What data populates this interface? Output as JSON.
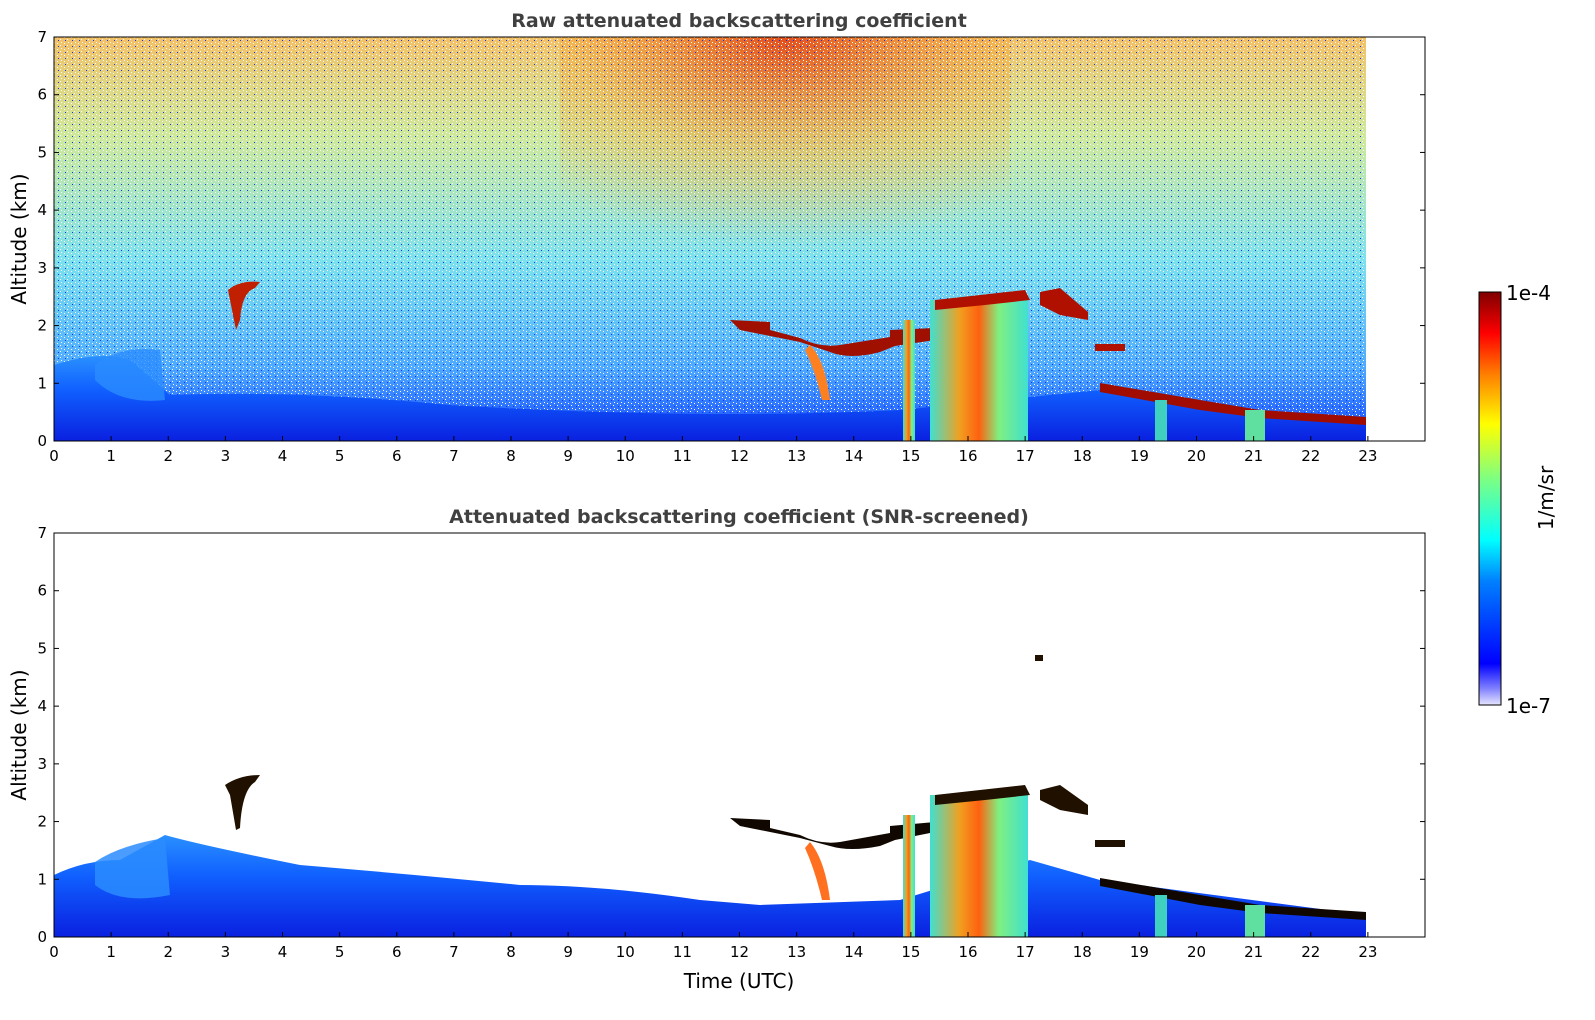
{
  "chart_data": [
    {
      "type": "heatmap",
      "title": "Raw attenuated backscattering coefficient",
      "xlabel": "",
      "ylabel": "Altitude (km)",
      "xlim": [
        0,
        24
      ],
      "ylim": [
        0,
        7
      ],
      "xticks": [
        "0",
        "1",
        "2",
        "3",
        "4",
        "5",
        "6",
        "7",
        "8",
        "9",
        "10",
        "11",
        "12",
        "13",
        "14",
        "15",
        "16",
        "17",
        "18",
        "19",
        "20",
        "21",
        "22",
        "23"
      ],
      "yticks": [
        "0",
        "1",
        "2",
        "3",
        "4",
        "5",
        "6",
        "7"
      ],
      "data_end_hour": 23,
      "noise_background": true,
      "features": [
        {
          "name": "boundary layer",
          "x": [
            0,
            23
          ],
          "top_km": [
            1.4,
            0.9,
            0.5,
            0.4
          ]
        },
        {
          "name": "cloud",
          "x": [
            3.0,
            3.6
          ],
          "y_km": [
            2.0,
            2.8
          ]
        },
        {
          "name": "cloud",
          "x": [
            11.8,
            14.8
          ],
          "y_km": [
            1.5,
            2.05
          ]
        },
        {
          "name": "cloud",
          "x": [
            15.0,
            17.2
          ],
          "y_km": [
            1.8,
            2.6
          ]
        },
        {
          "name": "cloud",
          "x": [
            17.3,
            18.3
          ],
          "y_km": [
            2.1,
            3.0
          ]
        },
        {
          "name": "cloud",
          "x": [
            18.4,
            23.0
          ],
          "y_km": [
            0.9,
            0.35
          ]
        }
      ]
    },
    {
      "type": "heatmap",
      "title": "Attenuated backscattering coefficient (SNR-screened)",
      "xlabel": "Time (UTC)",
      "ylabel": "Altitude (km)",
      "xlim": [
        0,
        24
      ],
      "ylim": [
        0,
        7
      ],
      "xticks": [
        "0",
        "1",
        "2",
        "3",
        "4",
        "5",
        "6",
        "7",
        "8",
        "9",
        "10",
        "11",
        "12",
        "13",
        "14",
        "15",
        "16",
        "17",
        "18",
        "19",
        "20",
        "21",
        "22",
        "23"
      ],
      "yticks": [
        "0",
        "1",
        "2",
        "3",
        "4",
        "5",
        "6",
        "7"
      ],
      "data_end_hour": 23,
      "noise_background": false
    }
  ],
  "colorbar": {
    "label": "1/m/sr",
    "max_label": "1e-4",
    "min_label": "1e-7",
    "colors": [
      "#7f0000",
      "#ff0000",
      "#ff8000",
      "#ffff00",
      "#80ff80",
      "#00ffff",
      "#0080ff",
      "#0000ff",
      "#e0e0ff"
    ]
  }
}
